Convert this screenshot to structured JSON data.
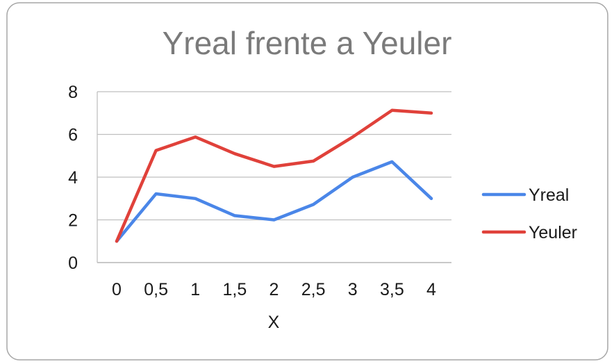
{
  "chart_data": {
    "type": "line",
    "title": "Yreal frente a Yeuler",
    "xlabel": "X",
    "ylabel": "",
    "categories": [
      "0",
      "0,5",
      "1",
      "1,5",
      "2",
      "2,5",
      "3",
      "3,5",
      "4"
    ],
    "ylim": [
      0,
      8
    ],
    "yticks": [
      "0",
      "2",
      "4",
      "6",
      "8"
    ],
    "grid": true,
    "legend_position": "right",
    "series": [
      {
        "name": "Yreal",
        "color": "#4a86e8",
        "values": [
          1,
          3.22,
          3.0,
          2.2,
          2.0,
          2.72,
          4.0,
          4.72,
          3.0
        ]
      },
      {
        "name": "Yeuler",
        "color": "#e0413a",
        "values": [
          1,
          5.25,
          5.88,
          5.1,
          4.5,
          4.75,
          5.88,
          7.13,
          7.0
        ]
      }
    ]
  }
}
